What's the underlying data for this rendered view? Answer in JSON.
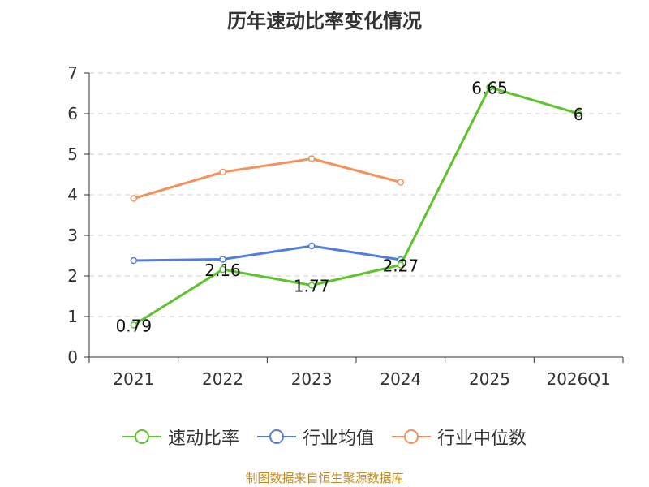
{
  "colors": {
    "axis": "#333333",
    "grid": "#cccccc",
    "text": "#333333",
    "source": "#c28a1e"
  },
  "chart_data": {
    "type": "line",
    "title": "历年速动比率变化情况",
    "categories": [
      "2021",
      "2022",
      "2023",
      "2024",
      "2025",
      "2026Q1"
    ],
    "ylim": [
      0,
      7
    ],
    "yticks": [
      0,
      1,
      2,
      3,
      4,
      5,
      6,
      7
    ],
    "grid": true,
    "legend_position": "bottom",
    "series": [
      {
        "name": "速动比率",
        "color": "#5ec42b",
        "values": [
          0.79,
          2.16,
          1.77,
          2.27,
          6.65,
          6
        ],
        "labels": [
          "0.79",
          "2.16",
          "1.77",
          "2.27",
          "6.65",
          "6"
        ],
        "bold": true
      },
      {
        "name": "行业均值",
        "color": "#4f7fd9",
        "values": [
          2.38,
          2.41,
          2.74,
          2.4,
          null,
          null
        ]
      },
      {
        "name": "行业中位数",
        "color": "#f5915a",
        "values": [
          3.91,
          4.56,
          4.89,
          4.31,
          null,
          null
        ]
      }
    ]
  },
  "footer": {
    "source": "制图数据来自恒生聚源数据库"
  }
}
